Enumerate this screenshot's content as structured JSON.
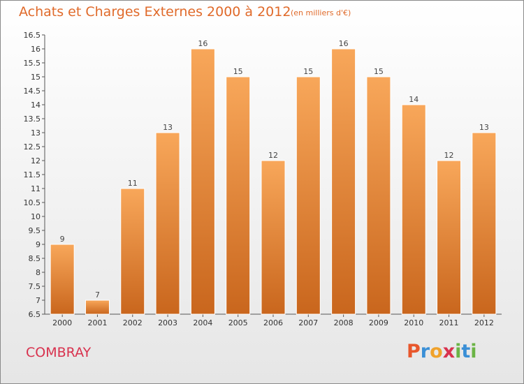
{
  "header": {
    "title": "Achats et Charges Externes 2000 à 2012",
    "subtitle": "(en milliers d'€)"
  },
  "footer": {
    "commune": "COMBRAY",
    "logo_letters": [
      "P",
      "r",
      "o",
      "x",
      "i",
      "t",
      "i"
    ]
  },
  "colors": {
    "title": "#e06a2a",
    "commune": "#d8324e",
    "bar_top": "#f8a75a",
    "bar_bottom": "#c9661d",
    "logo": [
      "#e8572c",
      "#3a8fd6",
      "#f0a22b",
      "#d8324e",
      "#6bb445",
      "#3a8fd6",
      "#6bb445"
    ]
  },
  "chart_data": {
    "type": "bar",
    "title": "Achats et Charges Externes 2000 à 2012",
    "xlabel": "",
    "ylabel": "",
    "categories": [
      "2000",
      "2001",
      "2002",
      "2003",
      "2004",
      "2005",
      "2006",
      "2007",
      "2008",
      "2009",
      "2010",
      "2011",
      "2012"
    ],
    "values": [
      9,
      7,
      11,
      13,
      16,
      15,
      12,
      15,
      16,
      15,
      14,
      12,
      13
    ],
    "data_labels": [
      "9",
      "7",
      "11",
      "13",
      "16",
      "15",
      "12",
      "15",
      "16",
      "15",
      "14",
      "12",
      "13"
    ],
    "ylim": [
      6.5,
      16.5
    ],
    "yticks": [
      6.5,
      7,
      7.5,
      8,
      8.5,
      9,
      9.5,
      10,
      10.5,
      11,
      11.5,
      12,
      12.5,
      13,
      13.5,
      14,
      14.5,
      15,
      15.5,
      16,
      16.5
    ],
    "ytick_labels": [
      "6.5",
      "7",
      "7.5",
      "8",
      "8.5",
      "9",
      "9.5",
      "10",
      "10.5",
      "11",
      "11.5",
      "12",
      "12.5",
      "13",
      "13.5",
      "14",
      "14.5",
      "15",
      "15.5",
      "16",
      "16.5"
    ],
    "grid": false,
    "legend": "none"
  }
}
